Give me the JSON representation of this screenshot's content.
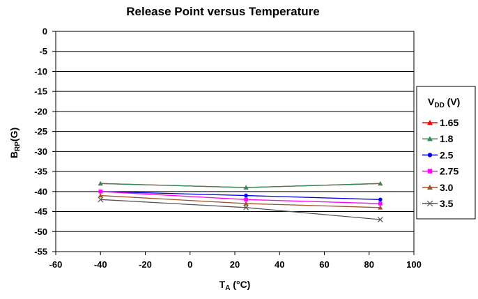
{
  "chart_data": {
    "type": "line",
    "title": "Release Point versus Temperature",
    "xlabel": "T",
    "xlabel_sub": "A",
    "xlabel_unit": " (°C)",
    "ylabel": "B",
    "ylabel_sub": "RP",
    "ylabel_unit": "(G)",
    "xlim": [
      -60,
      100
    ],
    "ylim": [
      -55,
      0
    ],
    "xticks": [
      -60,
      -40,
      -20,
      0,
      20,
      40,
      60,
      80,
      100
    ],
    "yticks": [
      0,
      -5,
      -10,
      -15,
      -20,
      -25,
      -30,
      -35,
      -40,
      -45,
      -50,
      -55
    ],
    "grid": "horizontal",
    "legend_title": "V",
    "legend_title_sub": "DD",
    "legend_title_unit": " (V)",
    "legend_position": "right",
    "x": [
      -40,
      25,
      85
    ],
    "series": [
      {
        "name": "1.65",
        "color": "#ff0000",
        "marker": "triangle",
        "values": [
          -38,
          -39,
          -38
        ]
      },
      {
        "name": "1.8",
        "color": "#2e8b57",
        "marker": "triangle",
        "values": [
          -38,
          -39,
          -38
        ]
      },
      {
        "name": "2.5",
        "color": "#0000ee",
        "marker": "dot",
        "values": [
          -40,
          -41,
          -42
        ]
      },
      {
        "name": "2.75",
        "color": "#ff00ff",
        "marker": "square",
        "values": [
          -40,
          -42,
          -43
        ]
      },
      {
        "name": "3.0",
        "color": "#a0522d",
        "marker": "triangle",
        "values": [
          -41,
          -43,
          -44
        ]
      },
      {
        "name": "3.5",
        "color": "#555555",
        "marker": "x",
        "values": [
          -42,
          -44,
          -47
        ]
      }
    ]
  }
}
